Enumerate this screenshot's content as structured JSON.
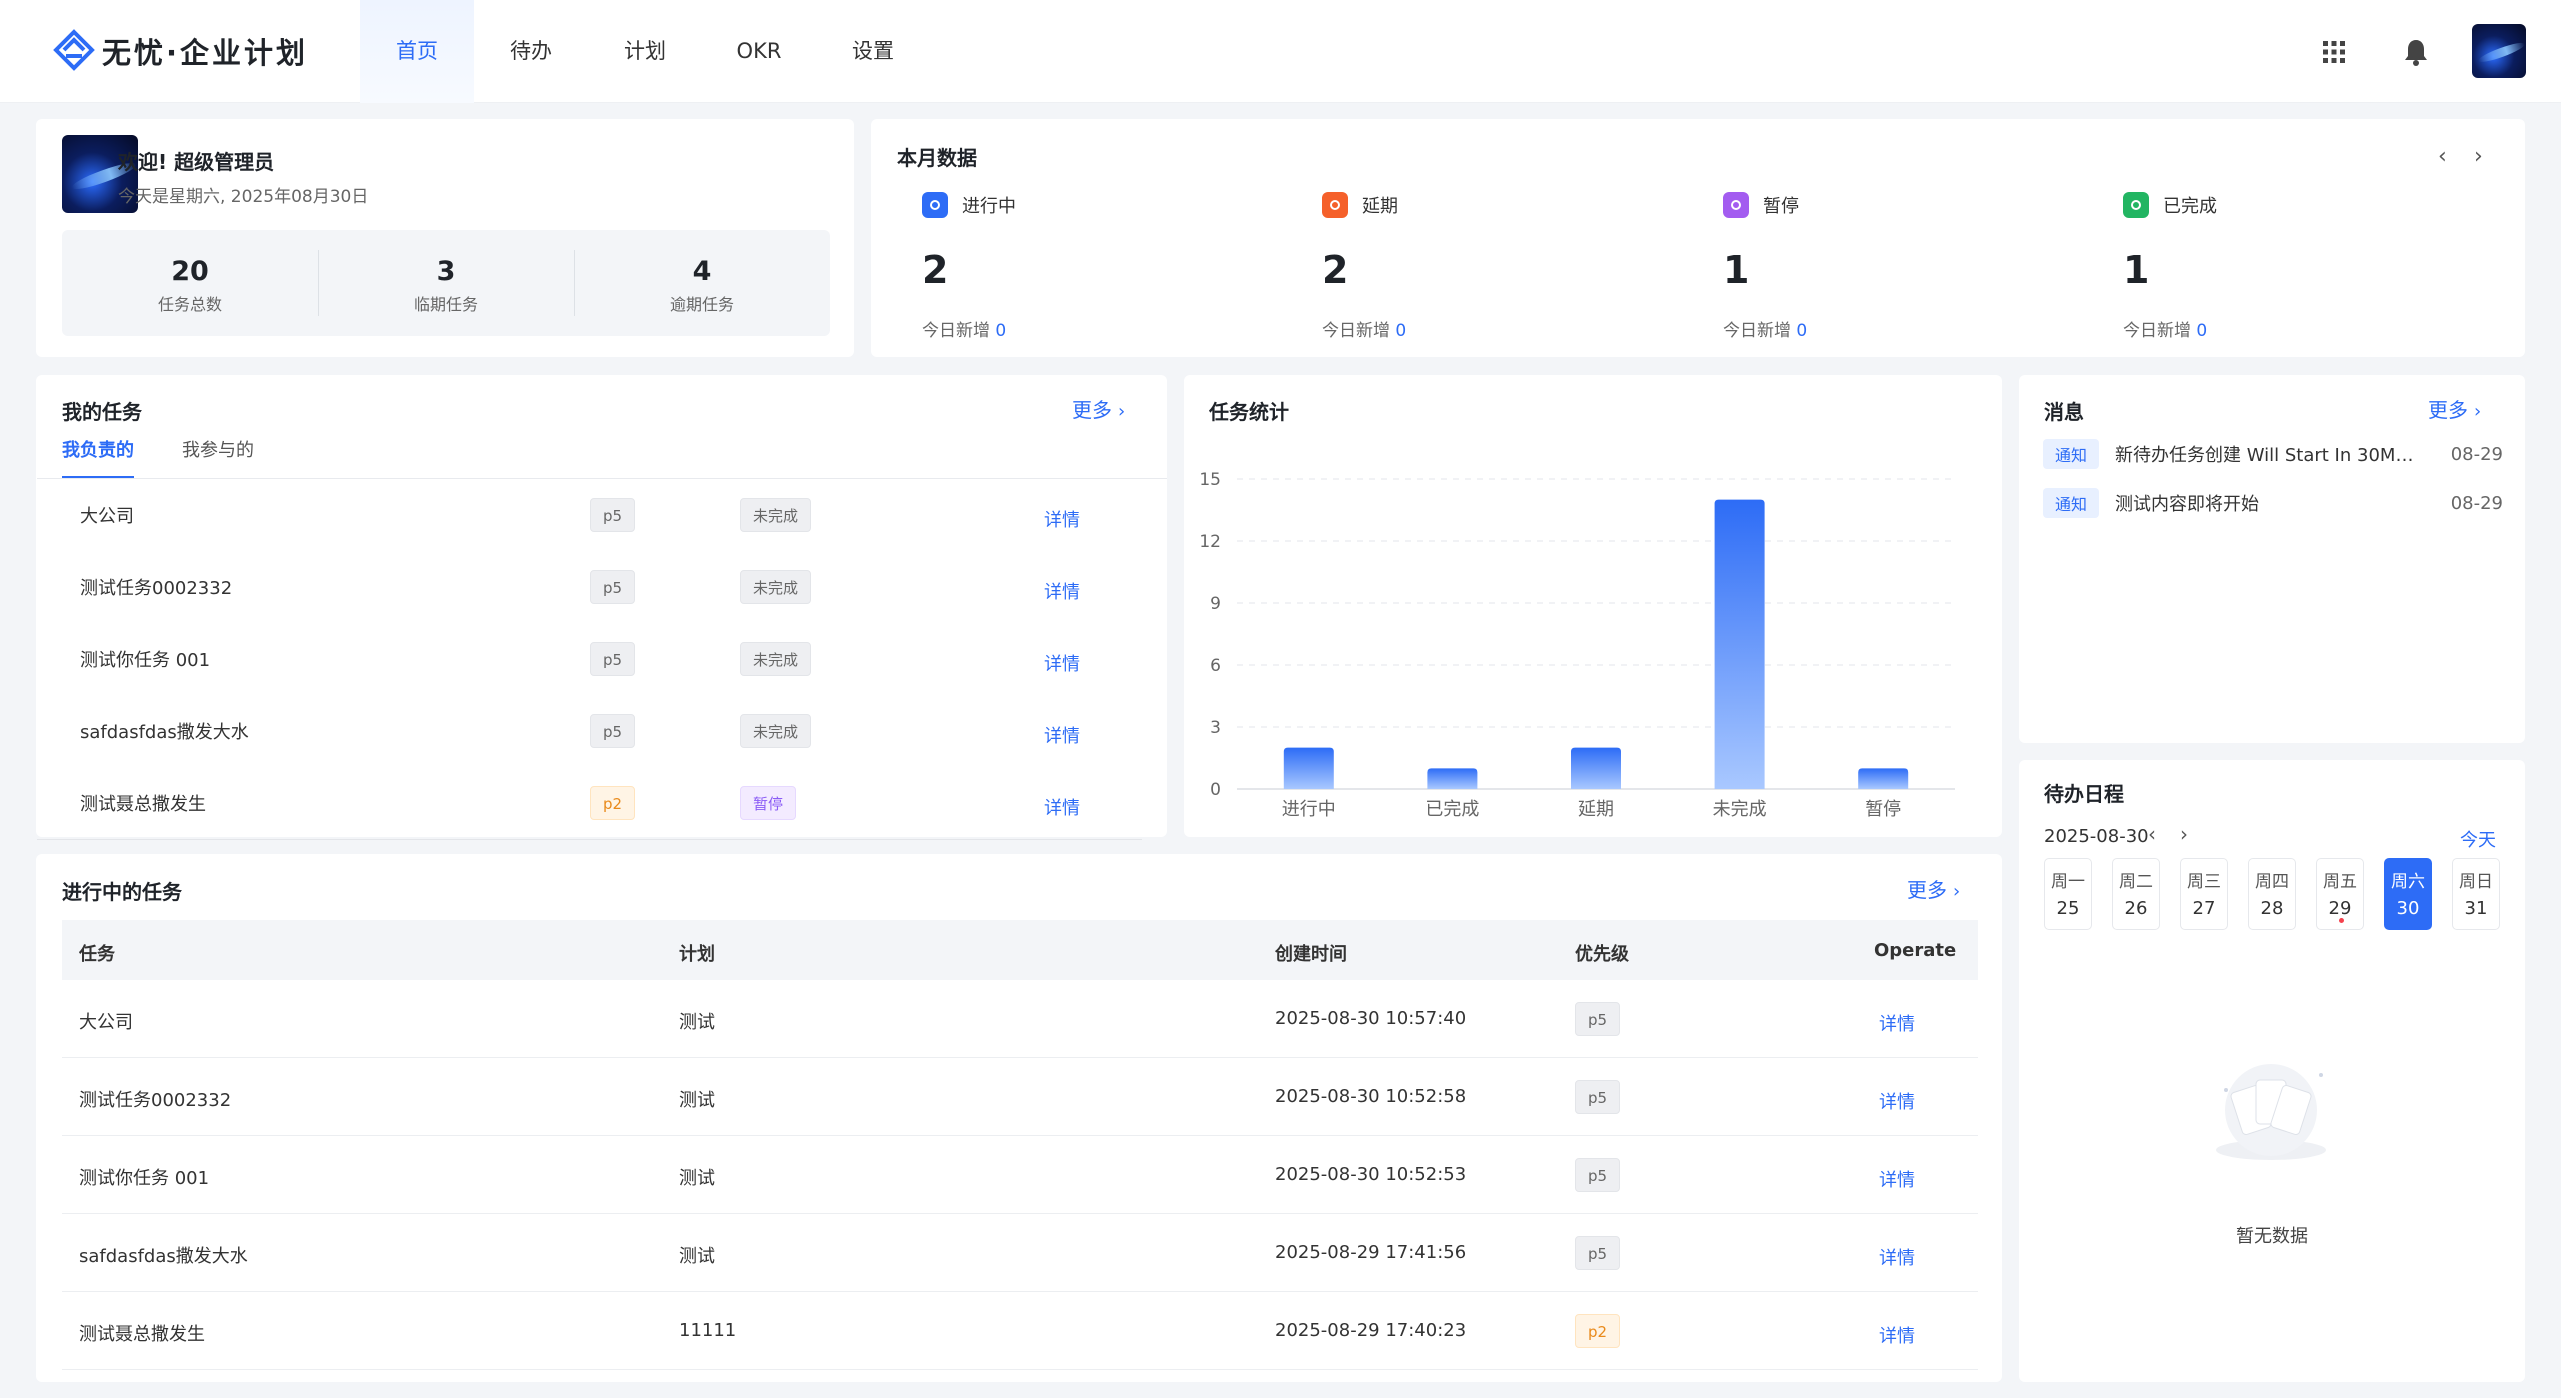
{
  "app": {
    "logo_text": "无忧·企业计划"
  },
  "nav": [
    {
      "label": "首页",
      "active": true
    },
    {
      "label": "待办"
    },
    {
      "label": "计划"
    },
    {
      "label": "OKR"
    },
    {
      "label": "设置"
    }
  ],
  "welcome": {
    "greeting": "欢迎! 超级管理员",
    "date_text": "今天是星期六, 2025年08月30日",
    "stats": [
      {
        "value": "20",
        "label": "任务总数"
      },
      {
        "value": "3",
        "label": "临期任务"
      },
      {
        "value": "4",
        "label": "逾期任务"
      }
    ]
  },
  "monthly": {
    "title": "本月数据",
    "items": [
      {
        "label": "进行中",
        "value": "2",
        "today_label": "今日新增",
        "today_value": "0",
        "color": "#2d6cf6"
      },
      {
        "label": "延期",
        "value": "2",
        "today_label": "今日新增",
        "today_value": "0",
        "color": "#f5602a"
      },
      {
        "label": "暂停",
        "value": "1",
        "today_label": "今日新增",
        "today_value": "0",
        "color": "#a35cf0"
      },
      {
        "label": "已完成",
        "value": "1",
        "today_label": "今日新增",
        "today_value": "0",
        "color": "#22b562"
      }
    ]
  },
  "my_tasks": {
    "title": "我的任务",
    "more": "更多",
    "tabs": [
      "我负责的",
      "我参与的"
    ],
    "rows": [
      {
        "name": "大公司",
        "priority": "p5",
        "status": "未完成",
        "action": "详情"
      },
      {
        "name": "测试任务0002332",
        "priority": "p5",
        "status": "未完成",
        "action": "详情"
      },
      {
        "name": "测试你任务 001",
        "priority": "p5",
        "status": "未完成",
        "action": "详情"
      },
      {
        "name": "safdasfdas撒发大水",
        "priority": "p5",
        "status": "未完成",
        "action": "详情"
      },
      {
        "name": "测试聂总撒发生",
        "priority": "p2",
        "status": "暂停",
        "action": "详情"
      }
    ]
  },
  "task_stats": {
    "title": "任务统计"
  },
  "chart_data": {
    "type": "bar",
    "categories": [
      "进行中",
      "已完成",
      "延期",
      "未完成",
      "暂停"
    ],
    "values": [
      2,
      1,
      2,
      14,
      1
    ],
    "ylim": [
      0,
      15
    ],
    "yticks": [
      "0",
      "3",
      "6",
      "9",
      "12",
      "15"
    ],
    "grid": true,
    "bar_color": "#2d6cf6"
  },
  "messages": {
    "title": "消息",
    "more": "更多",
    "items": [
      {
        "tag": "通知",
        "text": "新待办任务创建 Will Start In 30Min…",
        "date": "08-29"
      },
      {
        "tag": "通知",
        "text": "测试内容即将开始",
        "date": "08-29"
      }
    ]
  },
  "schedule": {
    "title": "待办日程",
    "date": "2025-08-30",
    "today": "今天",
    "days": [
      {
        "week": "周一",
        "day": "25"
      },
      {
        "week": "周二",
        "day": "26"
      },
      {
        "week": "周三",
        "day": "27"
      },
      {
        "week": "周四",
        "day": "28"
      },
      {
        "week": "周五",
        "day": "29",
        "dot": true
      },
      {
        "week": "周六",
        "day": "30",
        "active": true
      },
      {
        "week": "周日",
        "day": "31"
      }
    ],
    "empty_text": "暂无数据"
  },
  "ongoing": {
    "title": "进行中的任务",
    "more": "更多",
    "headers": [
      "任务",
      "计划",
      "创建时间",
      "优先级",
      "Operate"
    ],
    "rows": [
      {
        "task": "大公司",
        "plan": "测试",
        "created": "2025-08-30 10:57:40",
        "priority": "p5",
        "action": "详情"
      },
      {
        "task": "测试任务0002332",
        "plan": "测试",
        "created": "2025-08-30 10:52:58",
        "priority": "p5",
        "action": "详情"
      },
      {
        "task": "测试你任务 001",
        "plan": "测试",
        "created": "2025-08-30 10:52:53",
        "priority": "p5",
        "action": "详情"
      },
      {
        "task": "safdasfdas撒发大水",
        "plan": "测试",
        "created": "2025-08-29 17:41:56",
        "priority": "p5",
        "action": "详情"
      },
      {
        "task": "测试聂总撒发生",
        "plan": "11111",
        "created": "2025-08-29 17:40:23",
        "priority": "p2",
        "action": "详情"
      }
    ]
  },
  "icons": {
    "apps": "apps-grid-icon",
    "bell": "bell-icon"
  }
}
